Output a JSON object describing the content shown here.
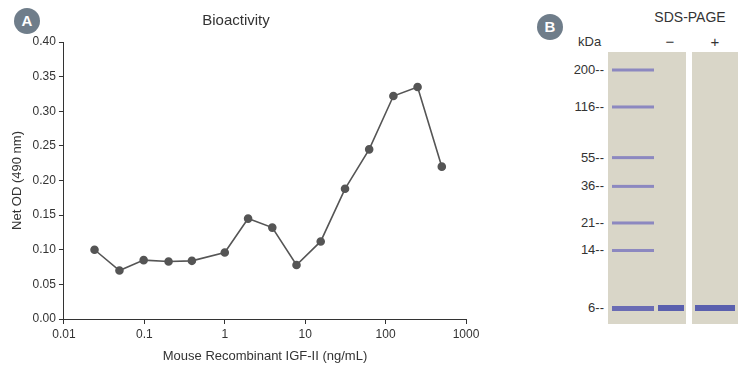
{
  "chart_data": {
    "panel": "A",
    "type": "line",
    "title": "Bioactivity",
    "x_label": "Mouse Recombinant IGF-II (ng/mL)",
    "y_label": "Net OD (490 nm)",
    "x": [
      0.024,
      0.049,
      0.098,
      0.2,
      0.39,
      1,
      1.95,
      3.9,
      7.8,
      15.6,
      31.3,
      62.5,
      125,
      250,
      500
    ],
    "values": [
      0.1,
      0.07,
      0.085,
      0.083,
      0.084,
      0.096,
      0.145,
      0.132,
      0.078,
      0.112,
      0.188,
      0.245,
      0.322,
      0.335,
      0.22
    ],
    "color": "#555555",
    "marker": "circle",
    "line_style": "solid",
    "log": "x",
    "xlim": [
      0.01,
      1000
    ],
    "xticks": [
      0.01,
      0.1,
      1,
      10,
      100,
      1000
    ],
    "ylim": [
      0,
      0.4
    ],
    "yticks": [
      {
        "value": 0,
        "label": "0.00"
      },
      {
        "value": 0.05,
        "label": "0.05"
      },
      {
        "value": 0.1,
        "label": "0.10"
      },
      {
        "value": 0.15,
        "label": "0.15"
      },
      {
        "value": 0.2,
        "label": "0.20"
      },
      {
        "value": 0.25,
        "label": "0.25"
      },
      {
        "value": 0.3,
        "label": "0.30"
      },
      {
        "value": 0.35,
        "label": "0.35"
      },
      {
        "value": 0.4,
        "label": "0.40"
      }
    ],
    "grid": false
  },
  "gel": {
    "panel": "B",
    "title": "SDS-PAGE",
    "unit": "kDa",
    "lanes": [
      "−",
      "+"
    ],
    "markers": [
      {
        "value": 200,
        "label": "200--"
      },
      {
        "value": 116,
        "label": "116--"
      },
      {
        "value": 55,
        "label": "55--"
      },
      {
        "value": 36,
        "label": "36--"
      },
      {
        "value": 21,
        "label": "21--"
      },
      {
        "value": 14,
        "label": "14--"
      },
      {
        "value": 6,
        "label": "6--"
      }
    ]
  }
}
